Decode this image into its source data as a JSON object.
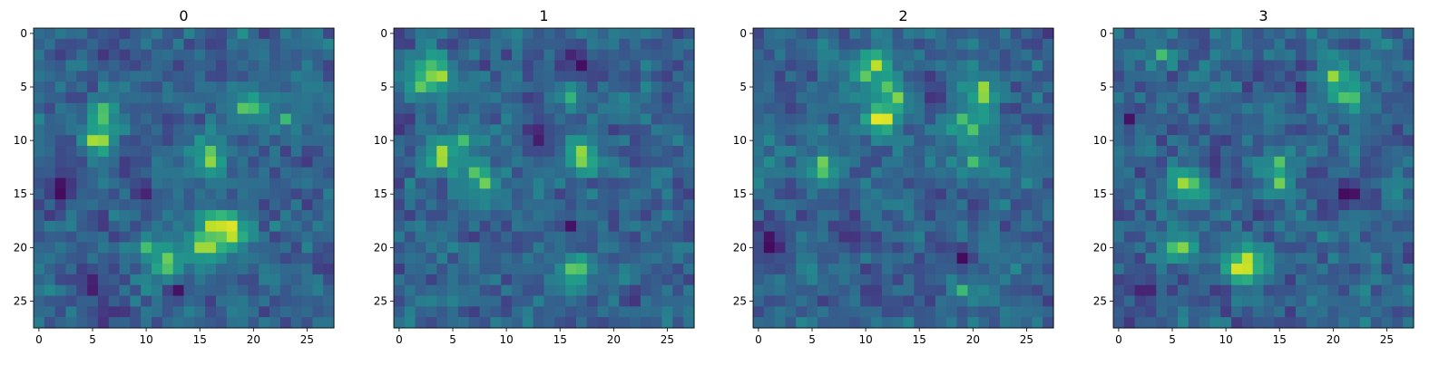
{
  "chart_data": [
    {
      "type": "heatmap",
      "title": "0",
      "rows": 28,
      "cols": 28,
      "colormap": "viridis",
      "xticks": [
        0,
        5,
        10,
        15,
        20,
        25
      ],
      "yticks": [
        0,
        5,
        10,
        15,
        20,
        25
      ],
      "xlim": [
        -0.5,
        27.5
      ],
      "ylim": [
        27.5,
        -0.5
      ],
      "z_range": [
        0,
        1
      ],
      "hotspots": [
        {
          "row": 10,
          "col": 5,
          "value": 0.88
        },
        {
          "row": 10,
          "col": 6,
          "value": 0.85
        },
        {
          "row": 7,
          "col": 6,
          "value": 0.7
        },
        {
          "row": 8,
          "col": 6,
          "value": 0.72
        },
        {
          "row": 12,
          "col": 16,
          "value": 0.85
        },
        {
          "row": 11,
          "col": 16,
          "value": 0.75
        },
        {
          "row": 7,
          "col": 19,
          "value": 0.75
        },
        {
          "row": 7,
          "col": 20,
          "value": 0.7
        },
        {
          "row": 8,
          "col": 23,
          "value": 0.68
        },
        {
          "row": 18,
          "col": 16,
          "value": 0.9
        },
        {
          "row": 18,
          "col": 17,
          "value": 0.92
        },
        {
          "row": 18,
          "col": 18,
          "value": 0.97
        },
        {
          "row": 19,
          "col": 18,
          "value": 0.9
        },
        {
          "row": 20,
          "col": 15,
          "value": 0.85
        },
        {
          "row": 20,
          "col": 16,
          "value": 0.85
        },
        {
          "row": 21,
          "col": 12,
          "value": 0.78
        },
        {
          "row": 22,
          "col": 12,
          "value": 0.75
        },
        {
          "row": 20,
          "col": 10,
          "value": 0.7
        },
        {
          "row": 15,
          "col": 2,
          "value": 0.02
        },
        {
          "row": 14,
          "col": 2,
          "value": 0.05
        },
        {
          "row": 24,
          "col": 13,
          "value": 0.05
        },
        {
          "row": 23,
          "col": 5,
          "value": 0.1
        },
        {
          "row": 24,
          "col": 5,
          "value": 0.08
        },
        {
          "row": 15,
          "col": 10,
          "value": 0.1
        },
        {
          "row": 2,
          "col": 6,
          "value": 0.15
        }
      ]
    },
    {
      "type": "heatmap",
      "title": "1",
      "rows": 28,
      "cols": 28,
      "colormap": "viridis",
      "xticks": [
        0,
        5,
        10,
        15,
        20,
        25
      ],
      "yticks": [
        0,
        5,
        10,
        15,
        20,
        25
      ],
      "xlim": [
        -0.5,
        27.5
      ],
      "ylim": [
        27.5,
        -0.5
      ],
      "z_range": [
        0,
        1
      ],
      "hotspots": [
        {
          "row": 4,
          "col": 3,
          "value": 0.85
        },
        {
          "row": 4,
          "col": 4,
          "value": 0.9
        },
        {
          "row": 3,
          "col": 3,
          "value": 0.7
        },
        {
          "row": 5,
          "col": 2,
          "value": 0.75
        },
        {
          "row": 11,
          "col": 4,
          "value": 0.88
        },
        {
          "row": 12,
          "col": 4,
          "value": 0.85
        },
        {
          "row": 10,
          "col": 6,
          "value": 0.7
        },
        {
          "row": 13,
          "col": 7,
          "value": 0.72
        },
        {
          "row": 14,
          "col": 8,
          "value": 0.78
        },
        {
          "row": 11,
          "col": 17,
          "value": 0.85
        },
        {
          "row": 12,
          "col": 17,
          "value": 0.8
        },
        {
          "row": 22,
          "col": 16,
          "value": 0.75
        },
        {
          "row": 22,
          "col": 17,
          "value": 0.72
        },
        {
          "row": 6,
          "col": 16,
          "value": 0.65
        },
        {
          "row": 3,
          "col": 17,
          "value": 0.02
        },
        {
          "row": 2,
          "col": 16,
          "value": 0.1
        },
        {
          "row": 10,
          "col": 13,
          "value": 0.05
        },
        {
          "row": 9,
          "col": 13,
          "value": 0.1
        },
        {
          "row": 9,
          "col": 12,
          "value": 0.15
        },
        {
          "row": 18,
          "col": 16,
          "value": 0.05
        },
        {
          "row": 18,
          "col": 20,
          "value": 0.2
        }
      ]
    },
    {
      "type": "heatmap",
      "title": "2",
      "rows": 28,
      "cols": 28,
      "colormap": "viridis",
      "xticks": [
        0,
        5,
        10,
        15,
        20,
        25
      ],
      "yticks": [
        0,
        5,
        10,
        15,
        20,
        25
      ],
      "xlim": [
        -0.5,
        27.5
      ],
      "ylim": [
        27.5,
        -0.5
      ],
      "z_range": [
        0,
        1
      ],
      "hotspots": [
        {
          "row": 3,
          "col": 11,
          "value": 0.95
        },
        {
          "row": 4,
          "col": 10,
          "value": 0.75
        },
        {
          "row": 5,
          "col": 12,
          "value": 0.72
        },
        {
          "row": 6,
          "col": 13,
          "value": 0.8
        },
        {
          "row": 8,
          "col": 11,
          "value": 0.97
        },
        {
          "row": 8,
          "col": 12,
          "value": 0.95
        },
        {
          "row": 5,
          "col": 21,
          "value": 0.85
        },
        {
          "row": 6,
          "col": 21,
          "value": 0.82
        },
        {
          "row": 8,
          "col": 19,
          "value": 0.7
        },
        {
          "row": 9,
          "col": 20,
          "value": 0.72
        },
        {
          "row": 12,
          "col": 6,
          "value": 0.8
        },
        {
          "row": 13,
          "col": 6,
          "value": 0.72
        },
        {
          "row": 12,
          "col": 20,
          "value": 0.7
        },
        {
          "row": 24,
          "col": 19,
          "value": 0.68
        },
        {
          "row": 20,
          "col": 1,
          "value": 0.02
        },
        {
          "row": 19,
          "col": 1,
          "value": 0.05
        },
        {
          "row": 21,
          "col": 19,
          "value": 0.03
        },
        {
          "row": 19,
          "col": 8,
          "value": 0.15
        },
        {
          "row": 19,
          "col": 9,
          "value": 0.15
        }
      ]
    },
    {
      "type": "heatmap",
      "title": "3",
      "rows": 28,
      "cols": 28,
      "colormap": "viridis",
      "xticks": [
        0,
        5,
        10,
        15,
        20,
        25
      ],
      "yticks": [
        0,
        5,
        10,
        15,
        20,
        25
      ],
      "xlim": [
        -0.5,
        27.5
      ],
      "ylim": [
        27.5,
        -0.5
      ],
      "z_range": [
        0,
        1
      ],
      "hotspots": [
        {
          "row": 22,
          "col": 11,
          "value": 0.95
        },
        {
          "row": 21,
          "col": 12,
          "value": 0.9
        },
        {
          "row": 22,
          "col": 12,
          "value": 0.92
        },
        {
          "row": 14,
          "col": 6,
          "value": 0.9
        },
        {
          "row": 14,
          "col": 7,
          "value": 0.72
        },
        {
          "row": 20,
          "col": 6,
          "value": 0.85
        },
        {
          "row": 20,
          "col": 5,
          "value": 0.7
        },
        {
          "row": 4,
          "col": 20,
          "value": 0.85
        },
        {
          "row": 6,
          "col": 21,
          "value": 0.72
        },
        {
          "row": 6,
          "col": 22,
          "value": 0.7
        },
        {
          "row": 12,
          "col": 15,
          "value": 0.72
        },
        {
          "row": 14,
          "col": 15,
          "value": 0.78
        },
        {
          "row": 2,
          "col": 4,
          "value": 0.7
        },
        {
          "row": 15,
          "col": 21,
          "value": 0.02
        },
        {
          "row": 15,
          "col": 22,
          "value": 0.05
        },
        {
          "row": 8,
          "col": 1,
          "value": 0.05
        },
        {
          "row": 24,
          "col": 2,
          "value": 0.1
        },
        {
          "row": 24,
          "col": 3,
          "value": 0.1
        },
        {
          "row": 5,
          "col": 17,
          "value": 0.12
        }
      ]
    }
  ]
}
